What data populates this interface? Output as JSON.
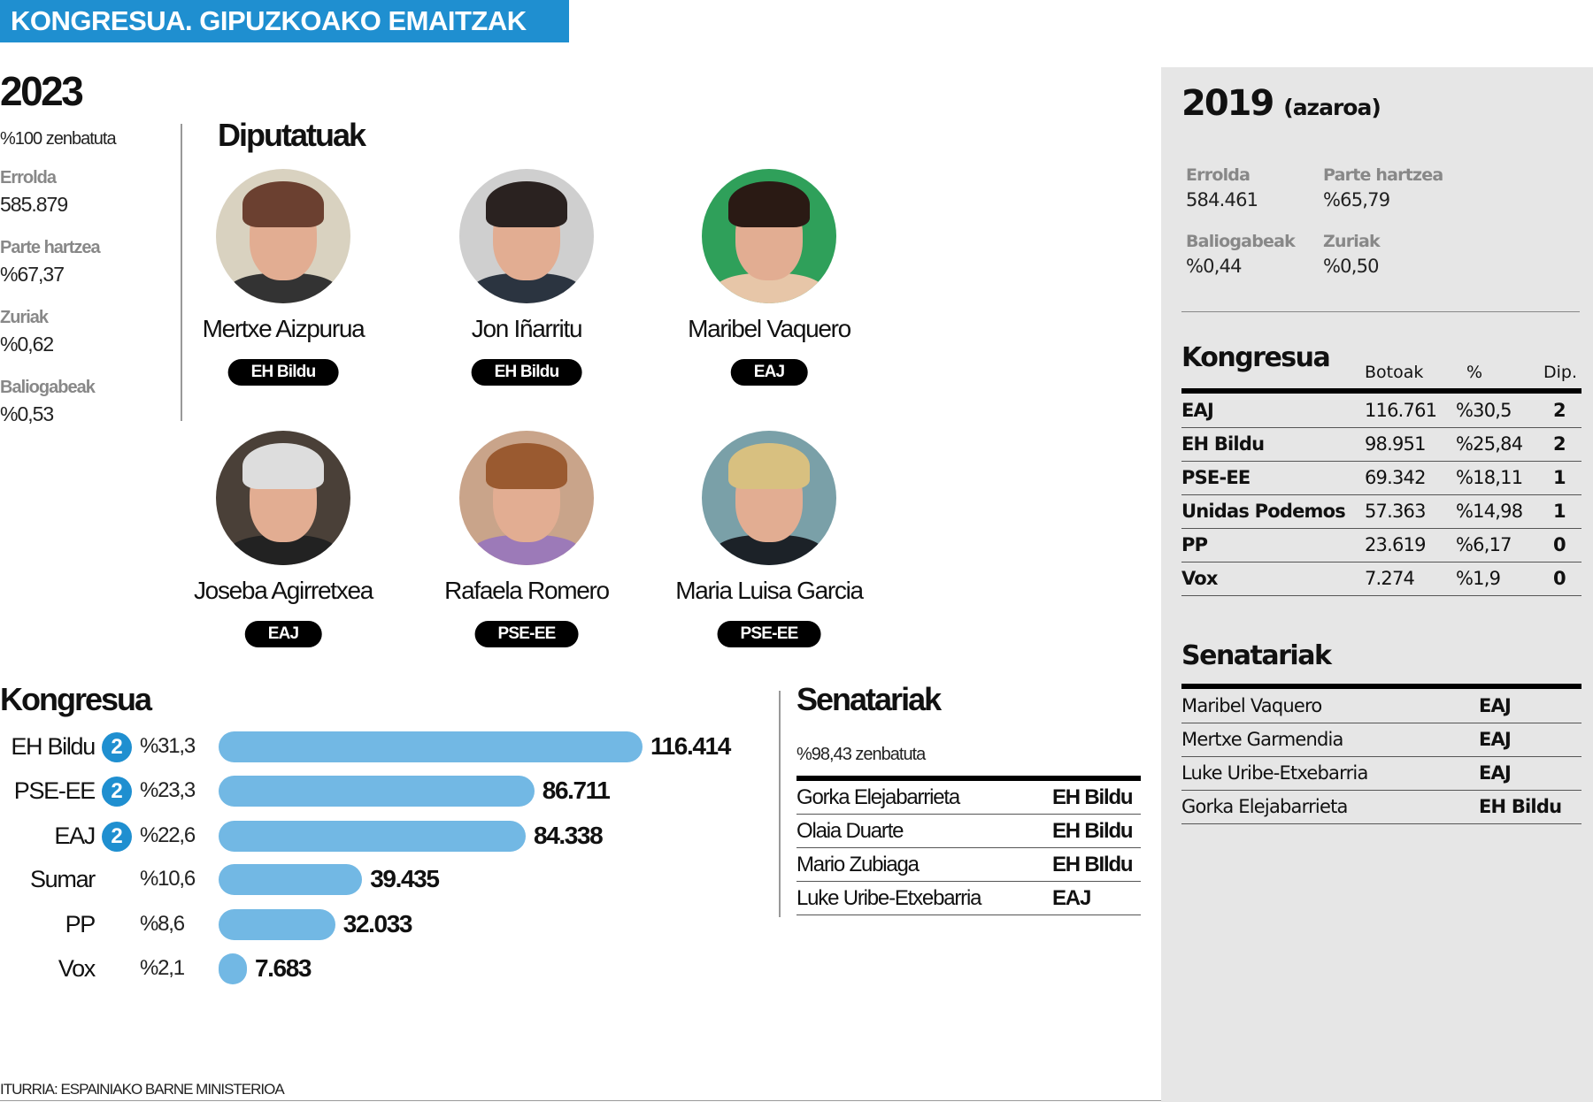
{
  "title": "KONGRESUA. GIPUZKOAKO EMAITZAK",
  "y2023": {
    "year": "2023",
    "counted": "%100 zenbatuta",
    "stats": [
      {
        "label": "Errolda",
        "value": "585.879"
      },
      {
        "label": "Parte hartzea",
        "value": "%67,37"
      },
      {
        "label": "Zuriak",
        "value": "%0,62"
      },
      {
        "label": "Baliogabeak",
        "value": "%0,53"
      }
    ],
    "deputies_title": "Diputatuak",
    "deputies": [
      {
        "name": "Mertxe Aizpurua",
        "party": "EH Bildu"
      },
      {
        "name": "Jon Iñarritu",
        "party": "EH Bildu"
      },
      {
        "name": "Maribel Vaquero",
        "party": "EAJ"
      },
      {
        "name": "Joseba Agirretxea",
        "party": "EAJ"
      },
      {
        "name": "Rafaela Romero",
        "party": "PSE-EE"
      },
      {
        "name": "Maria Luisa Garcia",
        "party": "PSE-EE"
      }
    ],
    "congress_title": "Kongresua",
    "senate_title": "Senatariak",
    "senate_counted": "%98,43 zenbatuta",
    "senators": [
      {
        "name": "Gorka Elejabarrieta",
        "party": "EH Bildu"
      },
      {
        "name": "Olaia Duarte",
        "party": "EH Bildu"
      },
      {
        "name": "Mario Zubiaga",
        "party": "EH BIldu"
      },
      {
        "name": "Luke Uribe-Etxebarria",
        "party": "EAJ"
      }
    ]
  },
  "chart_data": {
    "type": "bar",
    "title": "Kongresua",
    "orientation": "horizontal",
    "categories": [
      "EH Bildu",
      "PSE-EE",
      "EAJ",
      "Sumar",
      "PP",
      "Vox"
    ],
    "values": [
      116414,
      86711,
      84338,
      39435,
      32033,
      7683
    ],
    "value_labels": [
      "116.414",
      "86.711",
      "84.338",
      "39.435",
      "32.033",
      "7.683"
    ],
    "percent_labels": [
      "%31,3",
      "%23,3",
      "%22,6",
      "%10,6",
      "%8,6",
      "%2,1"
    ],
    "seats": [
      "2",
      "2",
      "2",
      null,
      null,
      null
    ],
    "bar_color": "#72b8e4",
    "xlim": [
      0,
      116414
    ]
  },
  "y2019": {
    "year": "2019",
    "sub": "(azaroa)",
    "stats": [
      {
        "label": "Errolda",
        "value": "584.461"
      },
      {
        "label": "Parte hartzea",
        "value": "%65,79"
      },
      {
        "label": "Baliogabeak",
        "value": "%0,44"
      },
      {
        "label": "Zuriak",
        "value": "%0,50"
      }
    ],
    "congress_title": "Kongresua",
    "headers": {
      "votes": "Botoak",
      "pct": "%",
      "seats": "Dip."
    },
    "rows": [
      {
        "party": "EAJ",
        "votes": "116.761",
        "pct": "%30,5",
        "seats": "2"
      },
      {
        "party": "EH Bildu",
        "votes": "98.951",
        "pct": "%25,84",
        "seats": "2"
      },
      {
        "party": "PSE-EE",
        "votes": "69.342",
        "pct": "%18,11",
        "seats": "1"
      },
      {
        "party": "Unidas Podemos",
        "votes": "57.363",
        "pct": "%14,98",
        "seats": "1"
      },
      {
        "party": "PP",
        "votes": "23.619",
        "pct": "%6,17",
        "seats": "0"
      },
      {
        "party": "Vox",
        "votes": "7.274",
        "pct": "%1,9",
        "seats": "0"
      }
    ],
    "senate_title": "Senatariak",
    "senators": [
      {
        "name": "Maribel Vaquero",
        "party": "EAJ"
      },
      {
        "name": "Mertxe Garmendia",
        "party": "EAJ"
      },
      {
        "name": "Luke Uribe-Etxebarria",
        "party": "EAJ"
      },
      {
        "name": "Gorka Elejabarrieta",
        "party": "EH Bildu"
      }
    ]
  },
  "source": "ITURRIA: ESPAINIAKO BARNE MINISTERIOA"
}
